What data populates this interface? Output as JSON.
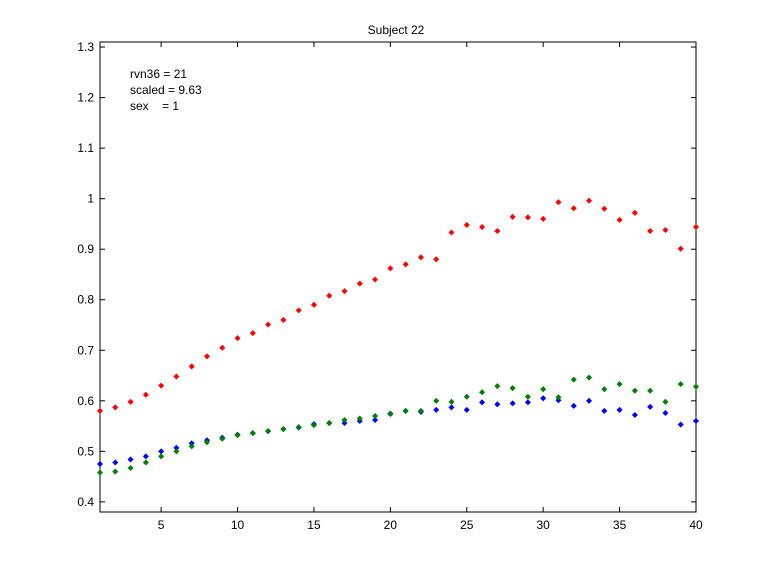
{
  "chart_data": {
    "type": "scatter",
    "title": "Subject 22",
    "xlabel": "",
    "ylabel": "",
    "xlim": [
      1,
      40
    ],
    "ylim": [
      0.38,
      1.31
    ],
    "xticks": [
      5,
      10,
      15,
      20,
      25,
      30,
      35,
      40
    ],
    "yticks": [
      0.4,
      0.5,
      0.6,
      0.7,
      0.8,
      0.9,
      1,
      1.1,
      1.2,
      1.3
    ],
    "ytick_labels": [
      "0.4",
      "0.5",
      "0.6",
      "0.7",
      "0.8",
      "0.9",
      "1",
      "1.1",
      "1.2",
      "1.3"
    ],
    "grid": false,
    "annotations": [
      "rvn36 = 21",
      "scaled = 9.63",
      "sex    = 1"
    ],
    "x": [
      1,
      2,
      3,
      4,
      5,
      6,
      7,
      8,
      9,
      10,
      11,
      12,
      13,
      14,
      15,
      16,
      17,
      18,
      19,
      20,
      21,
      22,
      23,
      24,
      25,
      26,
      27,
      28,
      29,
      30,
      31,
      32,
      33,
      34,
      35,
      36,
      37,
      38,
      39,
      40
    ],
    "series": [
      {
        "color": "#ff0000",
        "values": [
          0.58,
          0.587,
          0.598,
          0.612,
          0.63,
          0.648,
          0.668,
          0.688,
          0.705,
          0.724,
          0.734,
          0.751,
          0.76,
          0.779,
          0.79,
          0.808,
          0.817,
          0.832,
          0.84,
          0.862,
          0.87,
          0.884,
          0.88,
          0.933,
          0.948,
          0.944,
          0.936,
          0.964,
          0.963,
          0.96,
          0.993,
          0.981,
          0.996,
          0.98,
          0.958,
          0.972,
          0.936,
          0.938,
          0.901,
          0.944
        ]
      },
      {
        "color": "#0000ff",
        "values": [
          0.475,
          0.478,
          0.484,
          0.49,
          0.5,
          0.507,
          0.516,
          0.522,
          0.527,
          0.533,
          0.536,
          0.54,
          0.544,
          0.547,
          0.554,
          0.556,
          0.556,
          0.56,
          0.562,
          0.574,
          0.58,
          0.578,
          0.582,
          0.587,
          0.582,
          0.597,
          0.593,
          0.595,
          0.597,
          0.605,
          0.601,
          0.59,
          0.6,
          0.58,
          0.582,
          0.572,
          0.588,
          0.576,
          0.553,
          0.56
        ]
      },
      {
        "color": "#007f00",
        "values": [
          0.458,
          0.46,
          0.467,
          0.478,
          0.49,
          0.5,
          0.51,
          0.518,
          0.525,
          0.532,
          0.536,
          0.54,
          0.544,
          0.548,
          0.552,
          0.556,
          0.562,
          0.565,
          0.57,
          0.575,
          0.58,
          0.58,
          0.6,
          0.598,
          0.608,
          0.617,
          0.629,
          0.625,
          0.608,
          0.623,
          0.607,
          0.642,
          0.646,
          0.623,
          0.633,
          0.62,
          0.62,
          0.598,
          0.633,
          0.628
        ]
      }
    ]
  }
}
